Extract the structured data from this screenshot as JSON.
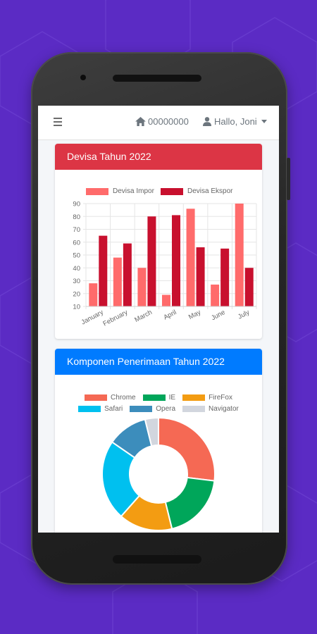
{
  "navbar": {
    "menu_icon": "hamburger-icon",
    "home_icon": "home-icon",
    "home_text": "00000000",
    "user_icon": "user-icon",
    "user_text": "Hallo, Joni"
  },
  "card1": {
    "title": "Devisa Tahun 2022",
    "header_color": "#dc3545"
  },
  "card2": {
    "title": "Komponen Penerimaan Tahun 2022",
    "header_color": "#007bff"
  },
  "chart_data": [
    {
      "type": "bar",
      "categories": [
        "January",
        "February",
        "March",
        "April",
        "May",
        "June",
        "July"
      ],
      "series": [
        {
          "name": "Devisa Impor",
          "color": "#ff6b6b",
          "values": [
            28,
            48,
            40,
            19,
            86,
            27,
            90
          ]
        },
        {
          "name": "Devisa Ekspor",
          "color": "#c8102e",
          "values": [
            65,
            59,
            80,
            81,
            56,
            55,
            40
          ]
        }
      ],
      "yticks": [
        10,
        20,
        30,
        40,
        50,
        60,
        70,
        80,
        90
      ],
      "ylim": [
        10,
        90
      ],
      "grid": true,
      "legend": "top"
    },
    {
      "type": "pie",
      "donut": true,
      "labels": [
        "Chrome",
        "IE",
        "FireFox",
        "Safari",
        "Opera",
        "Navigator"
      ],
      "values": [
        700,
        500,
        400,
        600,
        300,
        100
      ],
      "colors": [
        "#f56954",
        "#00a65a",
        "#f39c12",
        "#00c0ef",
        "#3c8dbc",
        "#d2d6de"
      ],
      "legend": "top"
    }
  ]
}
